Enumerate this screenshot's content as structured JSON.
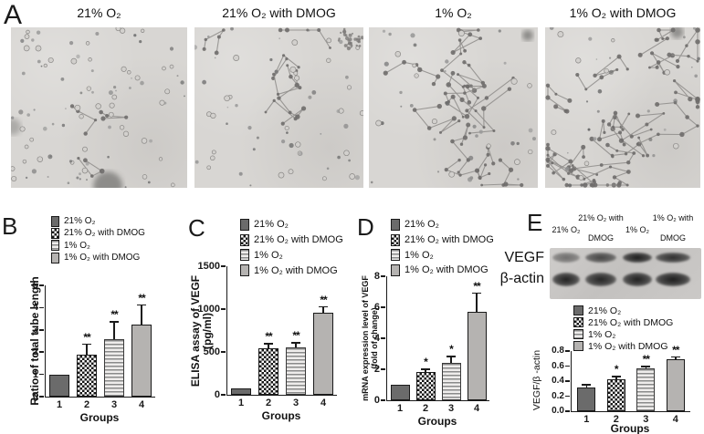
{
  "panels": {
    "a": {
      "letter": "A",
      "images": [
        {
          "label": "21% O₂",
          "tube_density": "sparse single cells, minimal tube formation"
        },
        {
          "label": "21% O₂ with DMOG",
          "tube_density": "few short tubes, cell cluster top-right"
        },
        {
          "label": "1% O₂",
          "tube_density": "moderate branching tube network"
        },
        {
          "label": "1% O₂ with DMOG",
          "tube_density": "dense interconnected tube network"
        }
      ]
    },
    "b": {
      "letter": "B"
    },
    "c": {
      "letter": "C"
    },
    "d": {
      "letter": "D"
    },
    "e": {
      "letter": "E",
      "blot": {
        "row_labels": [
          "VEGF",
          "β-actin"
        ],
        "col_labels": [
          [
            "21% O₂"
          ],
          [
            "21% O₂ with",
            "DMOG"
          ],
          [
            "1% O₂"
          ],
          [
            "1% O₂ with",
            "DMOG"
          ]
        ],
        "band_intensity": {
          "vegf": [
            0.5,
            0.72,
            0.95,
            0.85
          ],
          "actin": [
            0.92,
            0.9,
            0.93,
            0.95
          ]
        }
      }
    }
  },
  "legend": {
    "items": [
      {
        "label": "21% O₂",
        "pattern": "solid-dark"
      },
      {
        "label": "21% O₂ with DMOG",
        "pattern": "checker"
      },
      {
        "label": "1% O₂",
        "pattern": "hlines"
      },
      {
        "label": "1% O₂ with DMOG",
        "pattern": "solid-light"
      }
    ]
  },
  "colors": {
    "bar_dark": "#6b6b6b",
    "bar_light": "#b5b3b1",
    "stripe_gray": "#8a8a8a",
    "axis": "#1a1a1a",
    "blot_background": "#c8c6c4",
    "micro_background": "#d8d6d3"
  },
  "chart_data": [
    {
      "id": "b",
      "panel": "B",
      "type": "bar",
      "categories": [
        "1",
        "2",
        "3",
        "4"
      ],
      "values": [
        1.0,
        1.9,
        2.6,
        3.25
      ],
      "errors": [
        0,
        0.45,
        0.75,
        0.85
      ],
      "significance": [
        "",
        "**",
        "**",
        "**"
      ],
      "ylabel": "Ratio of total tube length",
      "xlabel": "Groups",
      "ylim": [
        0,
        5
      ],
      "yticks": [
        "0",
        "1",
        "2",
        "3",
        "4",
        "5"
      ],
      "patterns": [
        "solid-dark",
        "checker",
        "hlines",
        "solid-light"
      ],
      "legend_position": "top"
    },
    {
      "id": "c",
      "panel": "C",
      "type": "bar",
      "categories": [
        "1",
        "2",
        "3",
        "4"
      ],
      "values": [
        75,
        540,
        555,
        960
      ],
      "errors": [
        0,
        55,
        50,
        65
      ],
      "significance": [
        "",
        "**",
        "**",
        "**"
      ],
      "ylabel": "ELISA assay of VEGF\n(pg/ml)",
      "xlabel": "Groups",
      "ylim": [
        0,
        1500
      ],
      "yticks": [
        "0",
        "500",
        "1000",
        "1500"
      ],
      "patterns": [
        "solid-dark",
        "checker",
        "hlines",
        "solid-light"
      ],
      "legend_position": "top"
    },
    {
      "id": "d",
      "panel": "D",
      "type": "bar",
      "categories": [
        "1",
        "2",
        "3",
        "4"
      ],
      "values": [
        1.0,
        1.8,
        2.4,
        5.7
      ],
      "errors": [
        0,
        0.2,
        0.4,
        1.2
      ],
      "significance": [
        "",
        "*",
        "*",
        "**"
      ],
      "ylabel": "mRNA expression level of VEGF\n(fold of change)",
      "xlabel": "Groups",
      "ylim": [
        0,
        8
      ],
      "yticks": [
        "0",
        "2",
        "4",
        "6",
        "8"
      ],
      "patterns": [
        "solid-dark",
        "checker",
        "hlines",
        "solid-light"
      ],
      "legend_position": "top"
    },
    {
      "id": "e",
      "panel": "E",
      "type": "bar",
      "categories": [
        "1",
        "2",
        "3",
        "4"
      ],
      "values": [
        0.31,
        0.43,
        0.57,
        0.69
      ],
      "errors": [
        0.04,
        0.03,
        0.02,
        0.03
      ],
      "significance": [
        "",
        "*",
        "**",
        "**"
      ],
      "ylabel": "VEGF/β -actin",
      "xlabel": "Groups",
      "ylim": [
        0,
        0.8
      ],
      "yticks": [
        "0.0",
        "0.2",
        "0.4",
        "0.6",
        "0.8"
      ],
      "patterns": [
        "solid-dark",
        "checker",
        "hlines",
        "solid-light"
      ],
      "legend_position": "above"
    }
  ]
}
